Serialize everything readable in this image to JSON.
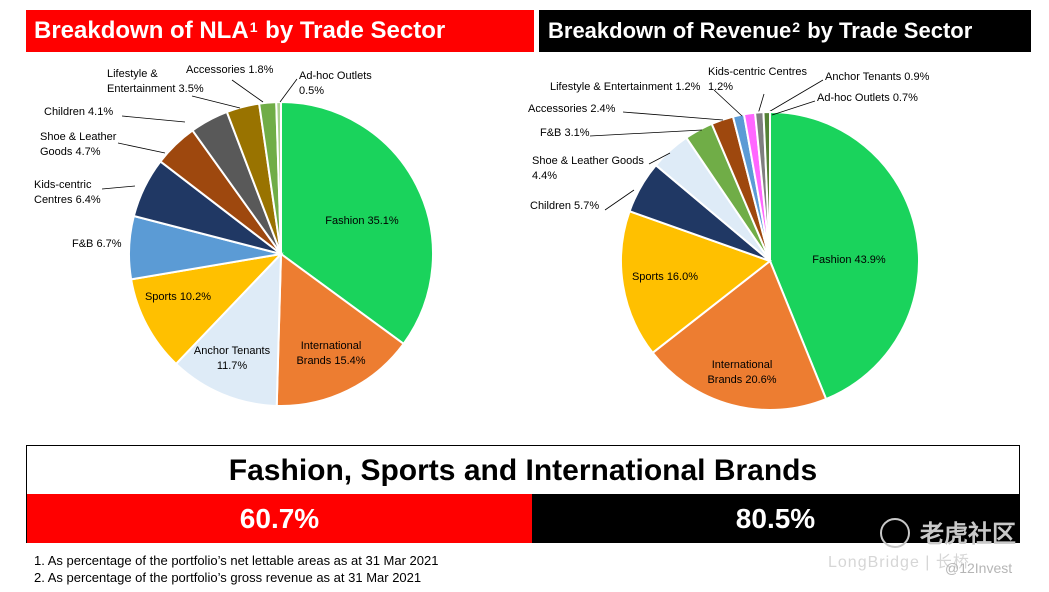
{
  "chart_data": [
    {
      "type": "pie",
      "title": "Breakdown of NLA",
      "title_sup": "1",
      "title_suffix": "by Trade Sector",
      "slices": [
        {
          "name": "Fashion",
          "value": 35.1,
          "label_lines": [
            "Fashion 35.1%"
          ],
          "color": "#1ad35c"
        },
        {
          "name": "International Brands",
          "value": 15.4,
          "label_lines": [
            "International",
            "Brands 15.4%"
          ],
          "color": "#ed7d31"
        },
        {
          "name": "Anchor Tenants",
          "value": 11.7,
          "label_lines": [
            "Anchor Tenants",
            "11.7%"
          ],
          "color": "#deebf7"
        },
        {
          "name": "Sports",
          "value": 10.2,
          "label_lines": [
            "Sports 10.2%"
          ],
          "color": "#ffc000"
        },
        {
          "name": "F&B",
          "value": 6.7,
          "label_lines": [
            "F&B 6.7%"
          ],
          "color": "#5b9bd5"
        },
        {
          "name": "Kids-centric Centres",
          "value": 6.4,
          "label_lines": [
            "Kids-centric",
            "Centres 6.4%"
          ],
          "color": "#203864"
        },
        {
          "name": "Shoe & Leather Goods",
          "value": 4.7,
          "label_lines": [
            "Shoe & Leather",
            "Goods 4.7%"
          ],
          "color": "#9e480e"
        },
        {
          "name": "Children",
          "value": 4.1,
          "label_lines": [
            "Children 4.1%"
          ],
          "color": "#595959"
        },
        {
          "name": "Lifestyle & Entertainment",
          "value": 3.5,
          "label_lines": [
            "Lifestyle &",
            "Entertainment 3.5%"
          ],
          "color": "#997300"
        },
        {
          "name": "Accessories",
          "value": 1.8,
          "label_lines": [
            "Accessories 1.8%"
          ],
          "color": "#70ad47"
        },
        {
          "name": "Ad-hoc Outlets",
          "value": 0.5,
          "label_lines": [
            "Ad-hoc Outlets",
            "0.5%"
          ],
          "color": "#a9d18e"
        }
      ]
    },
    {
      "type": "pie",
      "title": "Breakdown of Revenue",
      "title_sup": "2",
      "title_suffix": "by Trade Sector",
      "slices": [
        {
          "name": "Fashion",
          "value": 43.9,
          "label_lines": [
            "Fashion 43.9%"
          ],
          "color": "#1ad35c"
        },
        {
          "name": "International Brands",
          "value": 20.6,
          "label_lines": [
            "International",
            "Brands 20.6%"
          ],
          "color": "#ed7d31"
        },
        {
          "name": "Sports",
          "value": 16.0,
          "label_lines": [
            "Sports 16.0%"
          ],
          "color": "#ffc000"
        },
        {
          "name": "Children",
          "value": 5.7,
          "label_lines": [
            "Children 5.7%"
          ],
          "color": "#203864"
        },
        {
          "name": "Shoe & Leather Goods",
          "value": 4.4,
          "label_lines": [
            "Shoe & Leather Goods",
            "4.4%"
          ],
          "color": "#deebf7"
        },
        {
          "name": "F&B",
          "value": 3.1,
          "label_lines": [
            "F&B 3.1%"
          ],
          "color": "#70ad47"
        },
        {
          "name": "Accessories",
          "value": 2.4,
          "label_lines": [
            "Accessories 2.4%"
          ],
          "color": "#9e480e"
        },
        {
          "name": "Lifestyle & Entertainment",
          "value": 1.2,
          "label_lines": [
            "Lifestyle & Entertainment 1.2%"
          ],
          "color": "#5b9bd5"
        },
        {
          "name": "Kids-centric Centres",
          "value": 1.2,
          "label_lines": [
            "Kids-centric Centres",
            "1.2%"
          ],
          "color": "#ff66ff"
        },
        {
          "name": "Anchor Tenants",
          "value": 0.9,
          "label_lines": [
            "Anchor Tenants 0.9%"
          ],
          "color": "#7f7f7f"
        },
        {
          "name": "Ad-hoc Outlets",
          "value": 0.7,
          "label_lines": [
            "Ad-hoc Outlets 0.7%"
          ],
          "color": "#548235"
        }
      ]
    }
  ],
  "summary": {
    "title": "Fashion, Sports and International Brands",
    "nla_total": "60.7%",
    "revenue_total": "80.5%"
  },
  "footnotes": [
    "1. As percentage of the portfolio’s net lettable areas as at 31 Mar 2021",
    "2. As percentage of the portfolio’s gross revenue as at 31 Mar 2021"
  ],
  "watermark": {
    "brand_cn": "老虎社区",
    "brand_en": "LongBridge",
    "brand_en_cn": "长桥",
    "handle": "@12Invest"
  },
  "colors": {
    "nla_accent": "#ff0000",
    "revenue_accent": "#000000"
  }
}
